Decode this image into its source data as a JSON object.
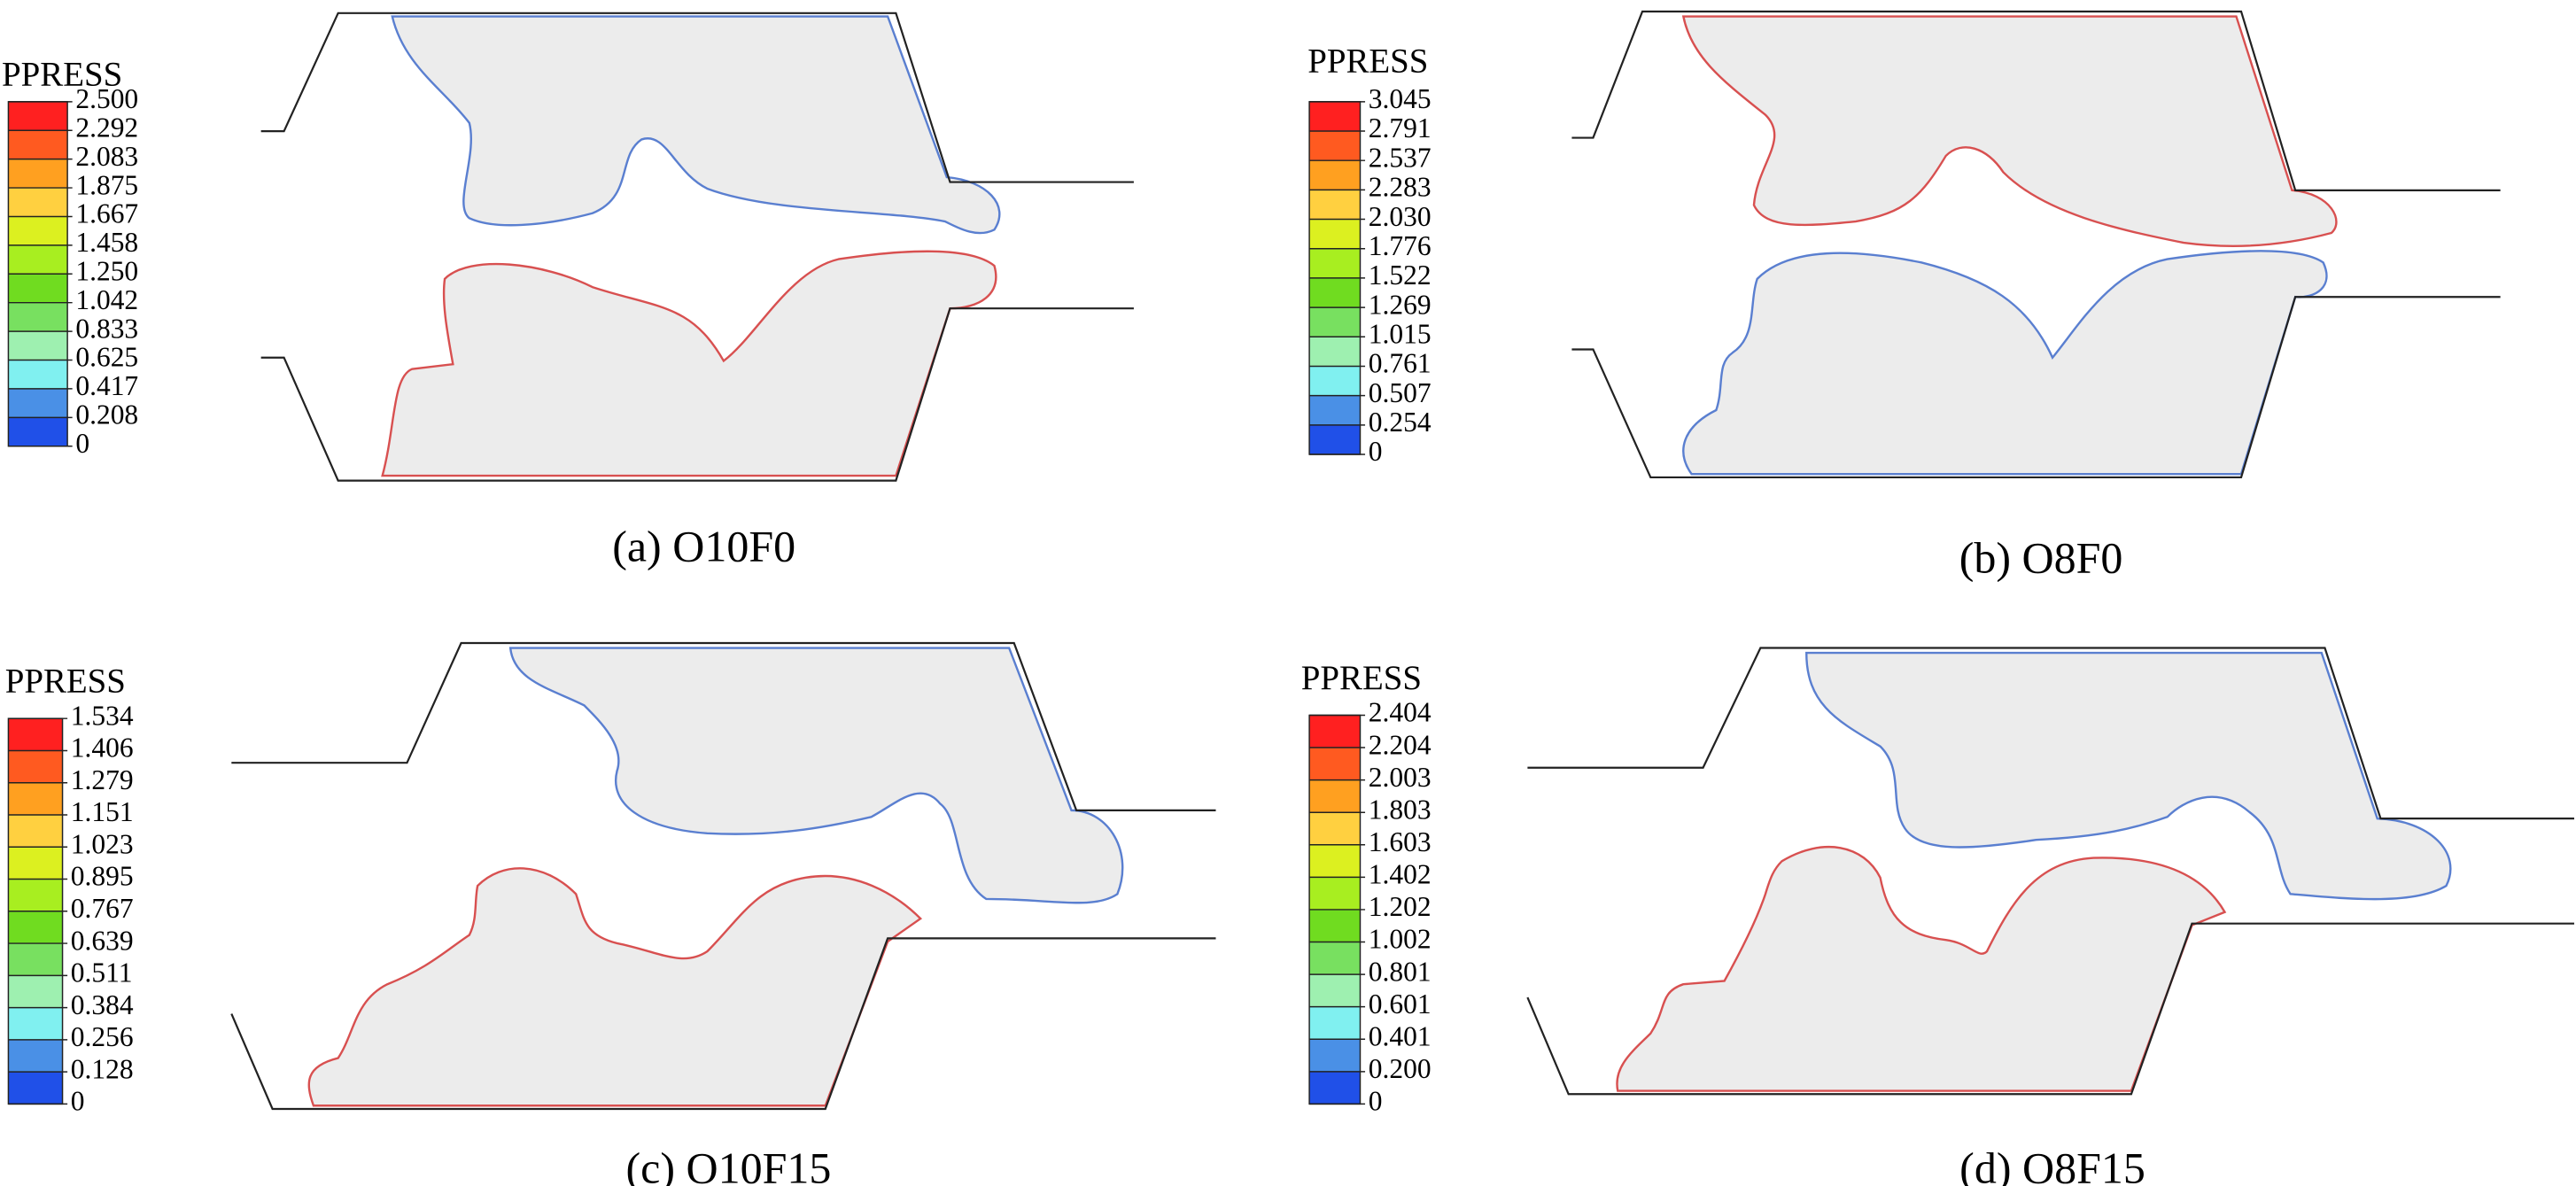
{
  "palette": [
    "#ff2020",
    "#ff5a20",
    "#ffa020",
    "#ffd040",
    "#dcf020",
    "#a8ee20",
    "#70dc20",
    "#78e060",
    "#9ef0b0",
    "#80f0f0",
    "#4a90e6",
    "#2050e8"
  ],
  "panels": [
    {
      "legend_title": "PPRESS",
      "ticks": [
        "2.500",
        "2.292",
        "2.083",
        "1.875",
        "1.667",
        "1.458",
        "1.250",
        "1.042",
        "0.833",
        "0.625",
        "0.417",
        "0.208",
        "0"
      ],
      "caption": "(a) O10F0"
    },
    {
      "legend_title": "PPRESS",
      "ticks": [
        "3.045",
        "2.791",
        "2.537",
        "2.283",
        "2.030",
        "1.776",
        "1.522",
        "1.269",
        "1.015",
        "0.761",
        "0.507",
        "0.254",
        "0"
      ],
      "caption": "(b) O8F0"
    },
    {
      "legend_title": "PPRESS",
      "ticks": [
        "1.534",
        "1.406",
        "1.279",
        "1.151",
        "1.023",
        "0.895",
        "0.767",
        "0.639",
        "0.511",
        "0.384",
        "0.256",
        "0.128",
        "0"
      ],
      "caption": "(c) O10F15"
    },
    {
      "legend_title": "PPRESS",
      "ticks": [
        "2.404",
        "2.204",
        "2.003",
        "1.803",
        "1.603",
        "1.402",
        "1.202",
        "1.002",
        "0.801",
        "0.601",
        "0.401",
        "0.200",
        "0"
      ],
      "caption": "(d) O8F15"
    }
  ]
}
